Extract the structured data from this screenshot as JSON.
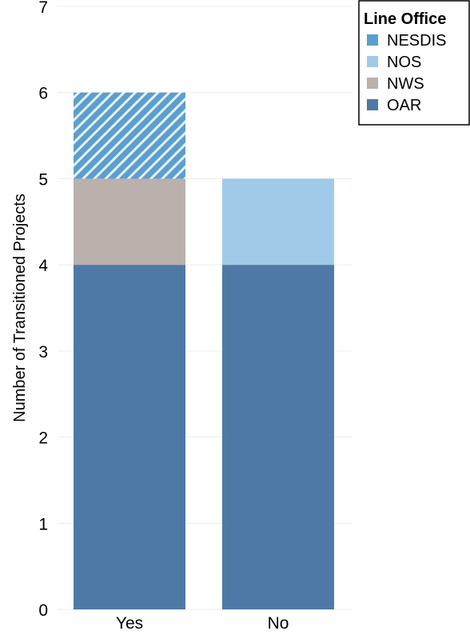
{
  "chart_data": {
    "type": "bar",
    "stacked": true,
    "title": "",
    "xlabel": "",
    "ylabel": "Number of Transitioned Projects",
    "categories": [
      "Yes",
      "No"
    ],
    "ylim": [
      0,
      7
    ],
    "yticks": [
      "0",
      "1",
      "2",
      "3",
      "4",
      "5",
      "6",
      "7"
    ],
    "grid": true,
    "legend_position": "top-right",
    "legend_title": "Line Office",
    "series": [
      {
        "name": "OAR",
        "values": [
          4,
          4
        ],
        "color": "#4e79a7"
      },
      {
        "name": "NWS",
        "values": [
          1,
          0
        ],
        "color": "#bab0ac"
      },
      {
        "name": "NOS",
        "values": [
          0,
          1
        ],
        "color": "#a0cbe8"
      },
      {
        "name": "NESDIS",
        "values": [
          1,
          0
        ],
        "color": "#5b9fcf",
        "pattern": "diagonal-hatch"
      }
    ],
    "legend_order": [
      "NESDIS",
      "NOS",
      "NWS",
      "OAR"
    ]
  }
}
